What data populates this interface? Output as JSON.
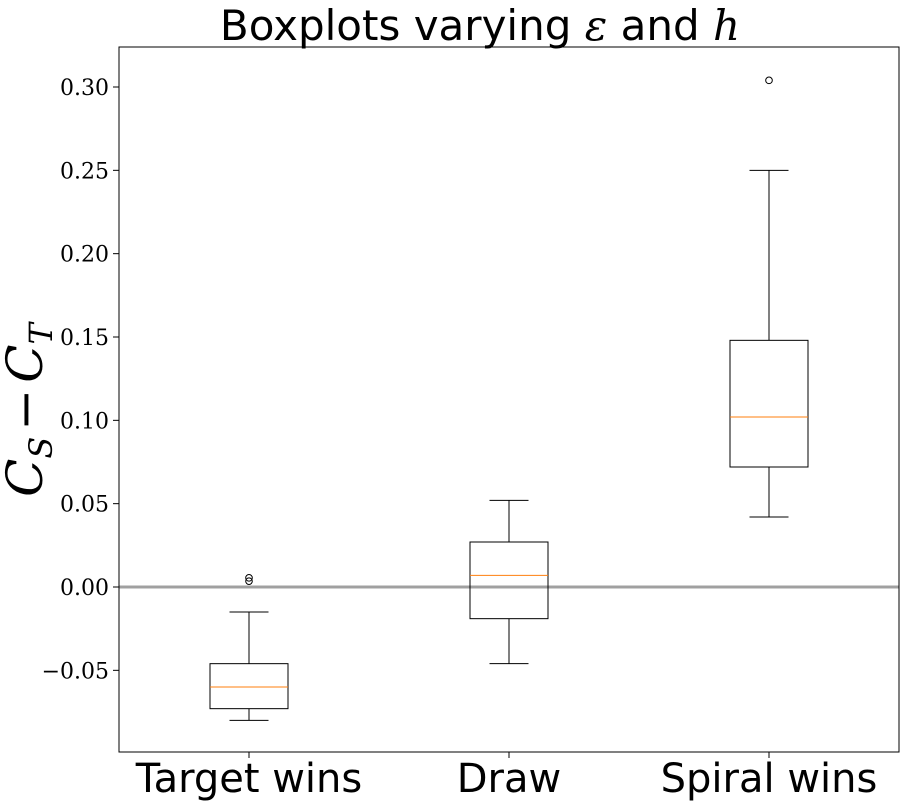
{
  "chart_data": {
    "type": "boxplot",
    "title_prefix": "Boxplots varying",
    "title_sym1": "ε",
    "title_mid": "and",
    "title_sym2": "h",
    "ylabel_main": "C",
    "ylabel_sub1": "S",
    "ylabel_minus": "−",
    "ylabel_sub2": "T",
    "xlabel": "",
    "categories": [
      "Target wins",
      "Draw",
      "Spiral wins"
    ],
    "boxes": [
      {
        "name": "Target wins",
        "whisker_low": -0.08,
        "q1": -0.073,
        "median": -0.06,
        "q3": -0.046,
        "whisker_high": -0.015,
        "outliers": [
          0.0035,
          0.0055
        ]
      },
      {
        "name": "Draw",
        "whisker_low": -0.046,
        "q1": -0.019,
        "median": 0.007,
        "q3": 0.027,
        "whisker_high": 0.052,
        "outliers": []
      },
      {
        "name": "Spiral wins",
        "whisker_low": 0.042,
        "q1": 0.072,
        "median": 0.102,
        "q3": 0.148,
        "whisker_high": 0.25,
        "outliers": [
          0.304
        ]
      }
    ],
    "hline": {
      "y": 0.0,
      "color": "#a0a0a0"
    },
    "ylim": [
      -0.099,
      0.324
    ],
    "yticks": [
      -0.05,
      0.0,
      0.05,
      0.1,
      0.15,
      0.2,
      0.25,
      0.3
    ],
    "ytick_labels": [
      "−0.05",
      "0.00",
      "0.05",
      "0.10",
      "0.15",
      "0.20",
      "0.25",
      "0.30"
    ],
    "grid": false,
    "colors": {
      "box": "#000000",
      "median": "#ff7f0e",
      "hline": "#a0a0a0"
    }
  }
}
